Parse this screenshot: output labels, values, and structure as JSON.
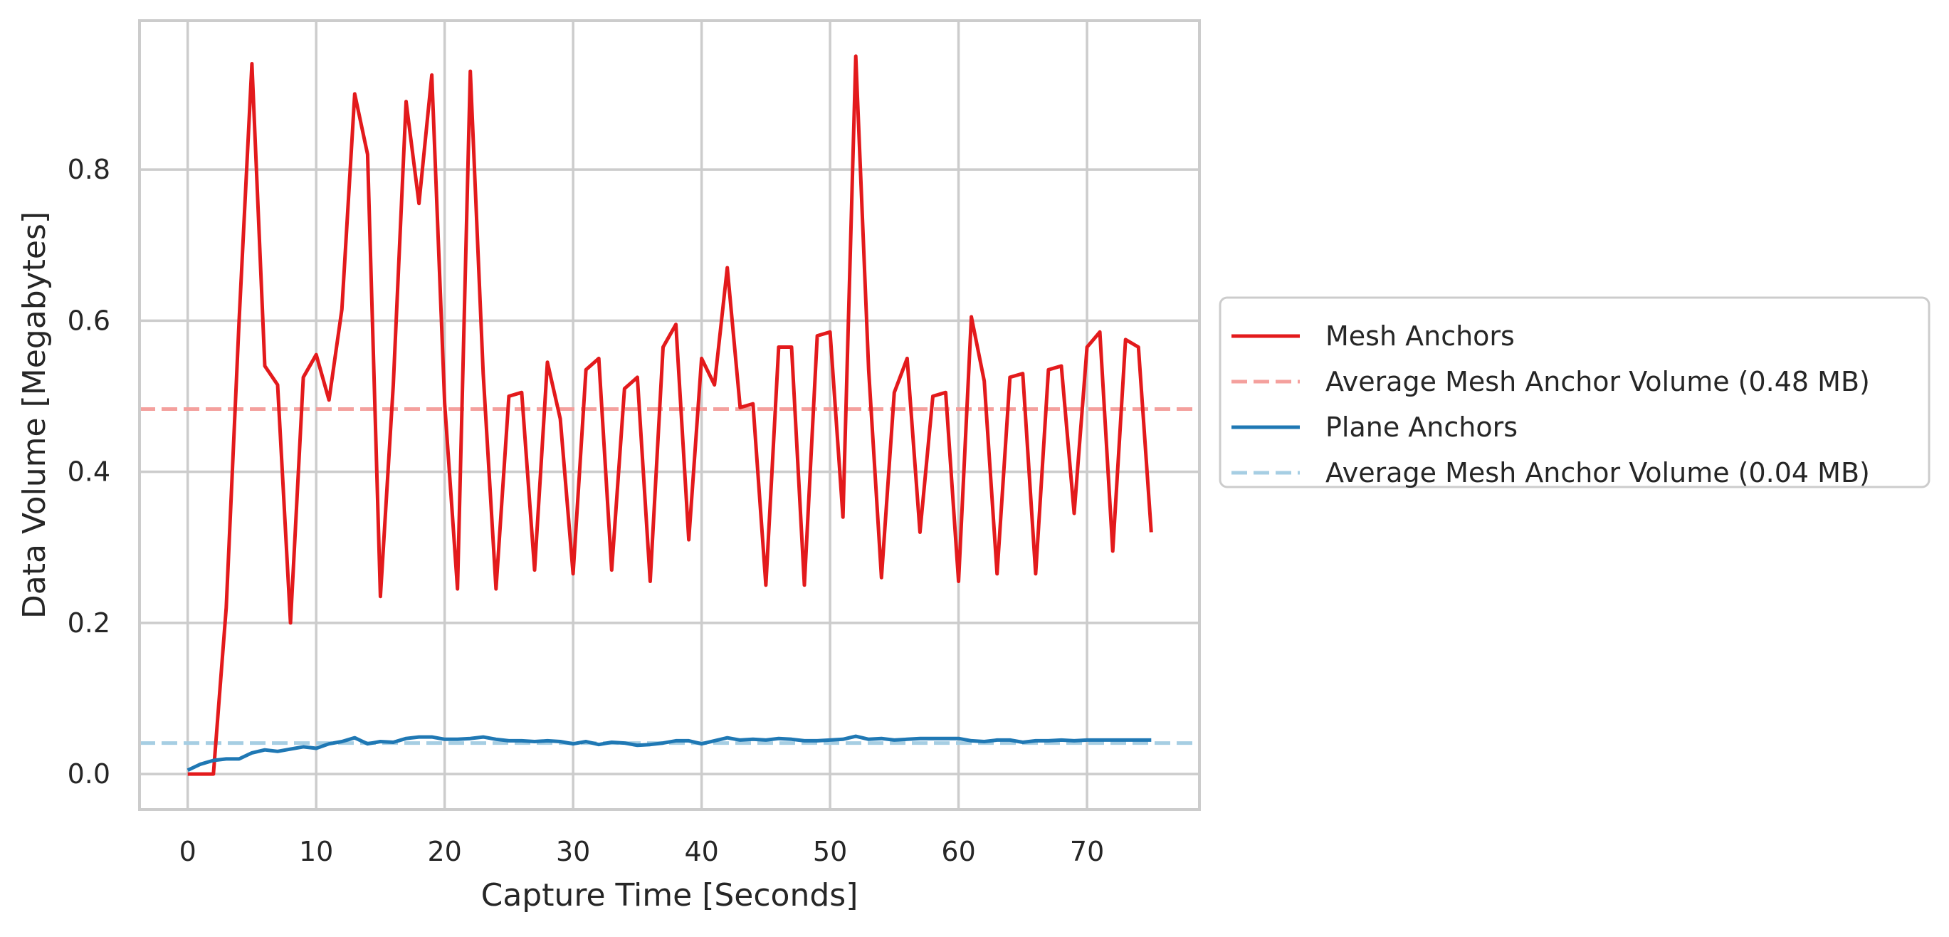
{
  "chart_data": {
    "type": "line",
    "title": "",
    "xlabel": "Capture Time [Seconds]",
    "ylabel": "Data Volume [Megabytes]",
    "xlim": [
      -3.75,
      78.75
    ],
    "ylim": [
      -0.047,
      0.997
    ],
    "xticks": [
      0,
      10,
      20,
      30,
      40,
      50,
      60,
      70
    ],
    "xtick_labels": [
      "0",
      "10",
      "20",
      "30",
      "40",
      "50",
      "60",
      "70"
    ],
    "yticks": [
      0.0,
      0.2,
      0.4,
      0.6,
      0.8
    ],
    "ytick_labels": [
      "0.0",
      "0.2",
      "0.4",
      "0.6",
      "0.8"
    ],
    "grid": true,
    "legend_position": "outside-right",
    "x": [
      0,
      1,
      2,
      3,
      4,
      5,
      6,
      7,
      8,
      9,
      10,
      11,
      12,
      13,
      14,
      15,
      16,
      17,
      18,
      19,
      20,
      21,
      22,
      23,
      24,
      25,
      26,
      27,
      28,
      29,
      30,
      31,
      32,
      33,
      34,
      35,
      36,
      37,
      38,
      39,
      40,
      41,
      42,
      43,
      44,
      45,
      46,
      47,
      48,
      49,
      50,
      51,
      52,
      53,
      54,
      55,
      56,
      57,
      58,
      59,
      60,
      61,
      62,
      63,
      64,
      65,
      66,
      67,
      68,
      69,
      70,
      71,
      72,
      73,
      74,
      75
    ],
    "series": [
      {
        "name": "Mesh Anchors",
        "color": "#e31a1c",
        "style": "solid",
        "values": [
          0.0,
          0.0,
          0.0,
          0.22,
          0.6,
          0.94,
          0.54,
          0.515,
          0.2,
          0.525,
          0.555,
          0.495,
          0.615,
          0.9,
          0.82,
          0.235,
          0.515,
          0.89,
          0.755,
          0.925,
          0.49,
          0.245,
          0.93,
          0.53,
          0.245,
          0.5,
          0.505,
          0.27,
          0.545,
          0.47,
          0.265,
          0.535,
          0.55,
          0.27,
          0.51,
          0.525,
          0.255,
          0.565,
          0.595,
          0.31,
          0.55,
          0.515,
          0.67,
          0.485,
          0.49,
          0.25,
          0.565,
          0.565,
          0.25,
          0.58,
          0.585,
          0.34,
          0.95,
          0.535,
          0.26,
          0.505,
          0.55,
          0.32,
          0.5,
          0.505,
          0.255,
          0.605,
          0.52,
          0.265,
          0.525,
          0.53,
          0.265,
          0.535,
          0.54,
          0.345,
          0.565,
          0.585,
          0.295,
          0.575,
          0.565,
          0.32
        ]
      },
      {
        "name": "Average Mesh Anchor Volume (0.48 MB)",
        "color": "#f4a09d",
        "style": "dashed",
        "constant": 0.483
      },
      {
        "name": "Plane Anchors",
        "color": "#1f78b4",
        "style": "solid",
        "values": [
          0.005,
          0.013,
          0.018,
          0.02,
          0.02,
          0.028,
          0.032,
          0.03,
          0.033,
          0.036,
          0.034,
          0.04,
          0.043,
          0.048,
          0.04,
          0.043,
          0.042,
          0.047,
          0.049,
          0.049,
          0.046,
          0.046,
          0.047,
          0.049,
          0.046,
          0.044,
          0.044,
          0.043,
          0.044,
          0.043,
          0.04,
          0.043,
          0.039,
          0.042,
          0.041,
          0.038,
          0.039,
          0.041,
          0.044,
          0.044,
          0.04,
          0.044,
          0.048,
          0.045,
          0.046,
          0.045,
          0.047,
          0.046,
          0.044,
          0.044,
          0.045,
          0.046,
          0.05,
          0.046,
          0.047,
          0.045,
          0.046,
          0.047,
          0.047,
          0.047,
          0.047,
          0.044,
          0.043,
          0.045,
          0.045,
          0.042,
          0.044,
          0.044,
          0.045,
          0.044,
          0.045,
          0.045,
          0.045,
          0.045,
          0.045,
          0.045
        ]
      },
      {
        "name": "Average Mesh Anchor Volume (0.04 MB)",
        "color": "#a6cee3",
        "style": "dashed",
        "constant": 0.041
      }
    ]
  }
}
